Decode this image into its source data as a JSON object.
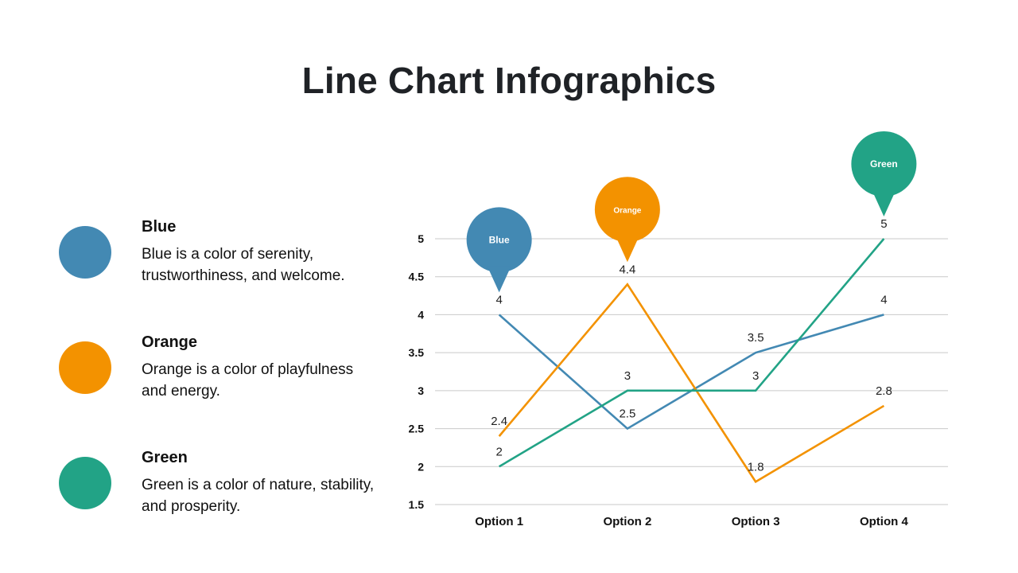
{
  "title": "Line Chart Infographics",
  "colors": {
    "blue": "#4389b3",
    "orange": "#f39200",
    "green": "#22a386"
  },
  "legend": [
    {
      "name": "Blue",
      "description": "Blue is a color of serenity, trustworthiness, and welcome.",
      "color": "#4389b3"
    },
    {
      "name": "Orange",
      "description": "Orange is a color of playfulness and energy.",
      "color": "#f39200"
    },
    {
      "name": "Green",
      "description": "Green is a color of nature, stability, and prosperity.",
      "color": "#22a386"
    }
  ],
  "chart_data": {
    "type": "line",
    "categories": [
      "Option 1",
      "Option 2",
      "Option 3",
      "Option 4"
    ],
    "ylim": [
      1.5,
      5
    ],
    "yticks": [
      1.5,
      2,
      2.5,
      3,
      3.5,
      4,
      4.5,
      5
    ],
    "yticks_label": [
      "1.5",
      "2",
      "2.5",
      "3",
      "3.5",
      "4",
      "4.5",
      "5"
    ],
    "grid": true,
    "series": [
      {
        "name": "Blue",
        "color": "#4389b3",
        "values": [
          4,
          2.5,
          3.5,
          4
        ],
        "labels": [
          "4",
          "2.5",
          "3.5",
          "4"
        ],
        "pin_at": 0
      },
      {
        "name": "Orange",
        "color": "#f39200",
        "values": [
          2.4,
          4.4,
          1.8,
          2.8
        ],
        "labels": [
          "2.4",
          "4.4",
          "1.8",
          "2.8"
        ],
        "pin_at": 1
      },
      {
        "name": "Green",
        "color": "#22a386",
        "values": [
          2,
          3,
          3,
          5
        ],
        "labels": [
          "2",
          "3",
          "3",
          "5"
        ],
        "pin_at": 3
      }
    ]
  }
}
